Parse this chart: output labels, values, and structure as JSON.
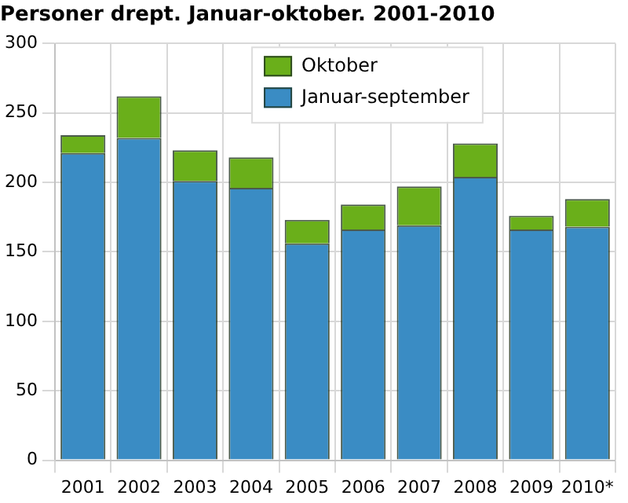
{
  "chart_data": {
    "type": "bar",
    "title": "Personer drept. Januar-oktober. 2001-2010",
    "categories": [
      "2001",
      "2002",
      "2003",
      "2004",
      "2005",
      "2006",
      "2007",
      "2008",
      "2009",
      "2010*"
    ],
    "series": [
      {
        "name": "Januar-september",
        "color": "#3a8cc4",
        "values": [
          221,
          232,
          201,
          196,
          156,
          166,
          169,
          204,
          166,
          168
        ]
      },
      {
        "name": "Oktober",
        "color": "#6aaf1a",
        "values": [
          13,
          30,
          22,
          22,
          17,
          18,
          28,
          24,
          10,
          20
        ]
      }
    ],
    "stacked": true,
    "ylim": [
      0,
      300
    ],
    "yticks": [
      0,
      50,
      100,
      150,
      200,
      250,
      300
    ],
    "grid": true,
    "legend": "top"
  }
}
